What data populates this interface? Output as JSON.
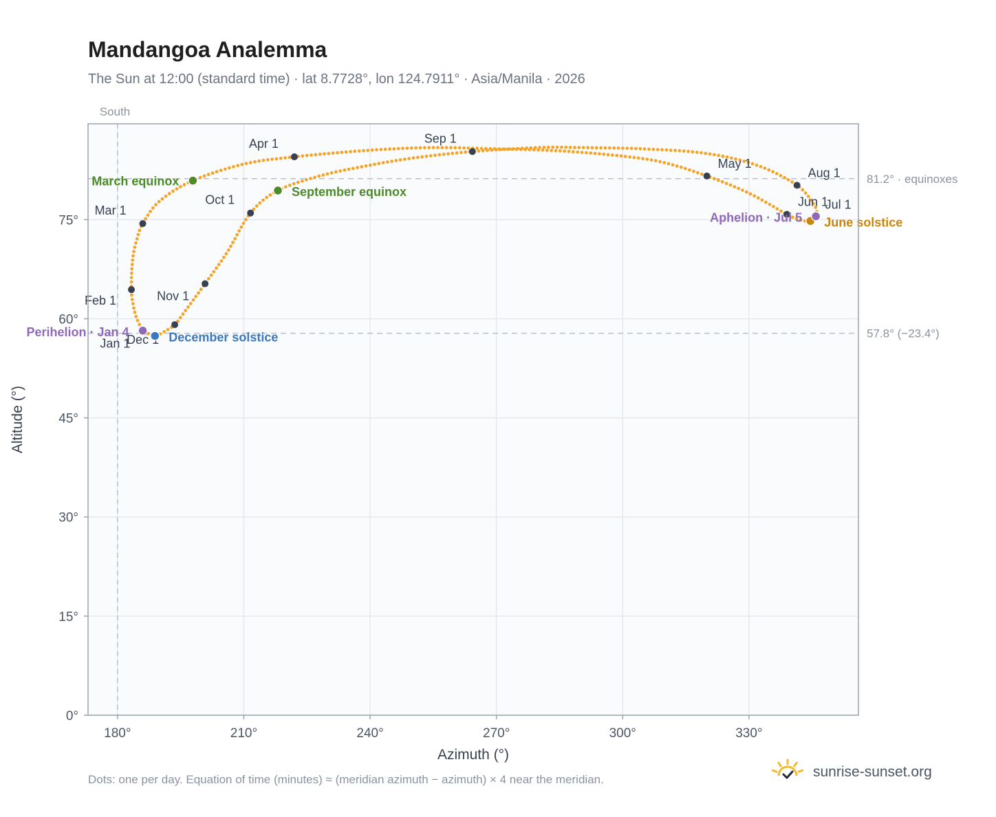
{
  "chart_data": {
    "type": "scatter",
    "title": "Mandangoa Analemma",
    "subtitle": "The Sun at 12:00 (standard time) · lat 8.7728°, lon 124.7911° · Asia/Manila · 2026",
    "xlabel": "Azimuth (°)",
    "ylabel": "Altitude (°)",
    "xlim": [
      173,
      356
    ],
    "ylim": [
      0,
      89.5
    ],
    "x_ticks": [
      {
        "value": 180,
        "label": "180°"
      },
      {
        "value": 210,
        "label": "210°"
      },
      {
        "value": 240,
        "label": "240°"
      },
      {
        "value": 270,
        "label": "270°"
      },
      {
        "value": 300,
        "label": "300°"
      },
      {
        "value": 330,
        "label": "330°"
      }
    ],
    "y_ticks": [
      {
        "value": 0,
        "label": "0°"
      },
      {
        "value": 15,
        "label": "15°"
      },
      {
        "value": 30,
        "label": "30°"
      },
      {
        "value": 45,
        "label": "45°"
      },
      {
        "value": 60,
        "label": "60°"
      },
      {
        "value": 75,
        "label": "75°"
      }
    ],
    "grid": true,
    "south_line": {
      "azimuth": 180,
      "label": "South"
    },
    "ref_lines": [
      {
        "altitude": 81.2,
        "label": "81.2° · equinoxes"
      },
      {
        "altitude": 57.8,
        "label": "57.8° (−23.4°)"
      }
    ],
    "path_waypoints": [
      [
        186.3,
        58.0
      ],
      [
        185.0,
        59.4
      ],
      [
        184.0,
        61.3
      ],
      [
        183.3,
        64.4
      ],
      [
        183.6,
        69.0
      ],
      [
        184.6,
        72.0
      ],
      [
        186.0,
        74.4
      ],
      [
        190.0,
        77.8
      ],
      [
        197.9,
        80.9
      ],
      [
        210.0,
        83.4
      ],
      [
        222.0,
        84.5
      ],
      [
        240.0,
        85.5
      ],
      [
        255.0,
        85.9
      ],
      [
        270.0,
        85.7
      ],
      [
        285.0,
        85.4
      ],
      [
        300.0,
        84.6
      ],
      [
        310.0,
        83.6
      ],
      [
        320.0,
        81.6
      ],
      [
        330.0,
        79.0
      ],
      [
        339.0,
        75.8
      ],
      [
        342.0,
        75.0
      ],
      [
        344.6,
        74.8
      ],
      [
        346.0,
        75.8
      ],
      [
        345.5,
        77.2
      ],
      [
        341.4,
        80.2
      ],
      [
        332.0,
        83.2
      ],
      [
        320.0,
        85.0
      ],
      [
        305.0,
        85.7
      ],
      [
        290.0,
        85.9
      ],
      [
        280.0,
        85.9
      ],
      [
        264.3,
        85.3
      ],
      [
        250.0,
        84.3
      ],
      [
        238.0,
        83.0
      ],
      [
        228.0,
        81.6
      ],
      [
        218.1,
        79.4
      ],
      [
        211.6,
        76.0
      ],
      [
        206.0,
        70.0
      ],
      [
        200.8,
        65.3
      ],
      [
        196.0,
        61.1
      ],
      [
        193.6,
        59.1
      ],
      [
        191.0,
        58.0
      ],
      [
        188.9,
        57.4
      ],
      [
        186.8,
        57.9
      ],
      [
        186.3,
        58.0
      ]
    ],
    "month_points": [
      {
        "label": "Jan 1",
        "azimuth": 186.3,
        "altitude": 58.0,
        "label_dx": -64,
        "label_dy": 23
      },
      {
        "label": "Feb 1",
        "azimuth": 183.3,
        "altitude": 64.4,
        "label_dx": -68,
        "label_dy": 22
      },
      {
        "label": "Mar 1",
        "azimuth": 186.0,
        "altitude": 74.4,
        "label_dx": -70,
        "label_dy": -13
      },
      {
        "label": "Apr 1",
        "azimuth": 222.0,
        "altitude": 84.5,
        "label_dx": -66,
        "label_dy": -13
      },
      {
        "label": "May 1",
        "azimuth": 320.0,
        "altitude": 81.6,
        "label_dx": 16,
        "label_dy": -12
      },
      {
        "label": "Jun 1",
        "azimuth": 339.0,
        "altitude": 75.8,
        "label_dx": 16,
        "label_dy": -12
      },
      {
        "label": "Jul 1",
        "azimuth": 345.8,
        "altitude": 75.6,
        "label_dx": 14,
        "label_dy": -10
      },
      {
        "label": "Aug 1",
        "azimuth": 341.4,
        "altitude": 80.2,
        "label_dx": 16,
        "label_dy": -12
      },
      {
        "label": "Sep 1",
        "azimuth": 264.3,
        "altitude": 85.3,
        "label_dx": -70,
        "label_dy": -13
      },
      {
        "label": "Oct 1",
        "azimuth": 211.6,
        "altitude": 76.0,
        "label_dx": -66,
        "label_dy": -13
      },
      {
        "label": "Nov 1",
        "azimuth": 200.8,
        "altitude": 65.3,
        "label_dx": -70,
        "label_dy": 24
      },
      {
        "label": "Dec 1",
        "azimuth": 193.6,
        "altitude": 59.1,
        "label_dx": -70,
        "label_dy": 28
      }
    ],
    "events": [
      {
        "label": "March equinox",
        "azimuth": 197.9,
        "altitude": 80.9,
        "color": "#4d8a2a",
        "anchor": "end",
        "label_dx": -20,
        "label_dy": 7
      },
      {
        "label": "September equinox",
        "azimuth": 218.1,
        "altitude": 79.4,
        "color": "#4d8a2a",
        "anchor": "start",
        "label_dx": 20,
        "label_dy": 8
      },
      {
        "label": "June solstice",
        "azimuth": 344.6,
        "altitude": 74.8,
        "color": "#c8860d",
        "anchor": "start",
        "label_dx": 20,
        "label_dy": 8
      },
      {
        "label": "December solstice",
        "azimuth": 188.9,
        "altitude": 57.4,
        "color": "#3a78c0",
        "anchor": "start",
        "label_dx": 20,
        "label_dy": 8
      },
      {
        "label": "Perihelion · Jan 4",
        "azimuth": 186.0,
        "altitude": 58.2,
        "color": "#9068b8",
        "anchor": "end",
        "label_dx": -20,
        "label_dy": 8
      },
      {
        "label": "Aphelion · Jul 5",
        "azimuth": 345.9,
        "altitude": 75.5,
        "color": "#9068b8",
        "anchor": "end",
        "label_dx": -20,
        "label_dy": 8
      }
    ]
  },
  "colors": {
    "path": "#f2a52a",
    "month_dot": "#374151",
    "plot_bg": "#f9fbfd",
    "grid": "#e5e9ef",
    "ref_line": "#b8c0cc",
    "axis": "#9aa3b0"
  },
  "footnote": "Dots: one per day. Equation of time (minutes) ≈ (meridian azimuth − azimuth) × 4 near the meridian.",
  "brand": {
    "text": "sunrise-sunset.org",
    "icon": "sun-check-icon",
    "color": "#f5b82e"
  }
}
